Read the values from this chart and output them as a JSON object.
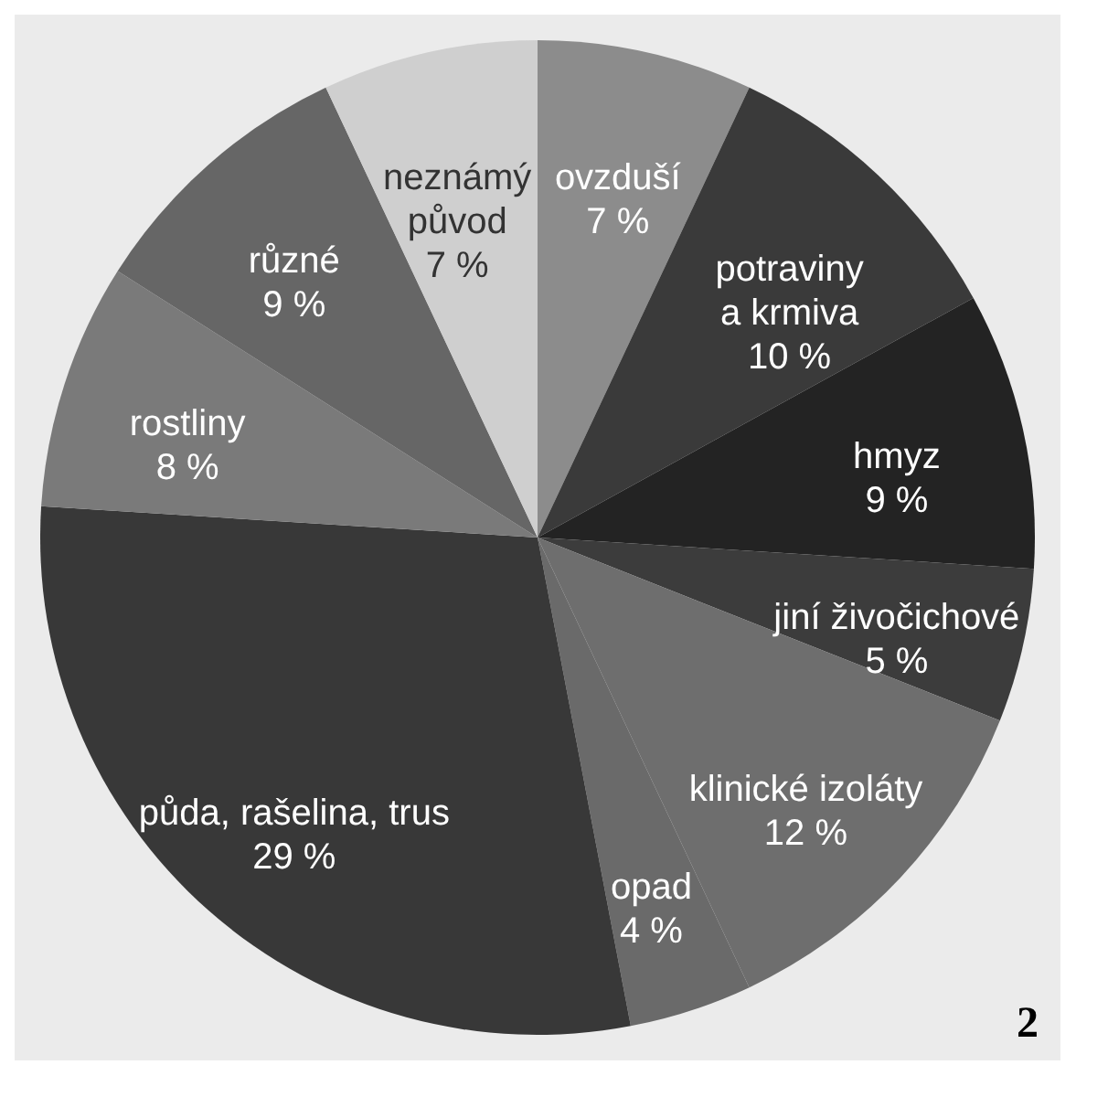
{
  "chart_data": {
    "type": "pie",
    "categories": [
      "ovzduší",
      "potraviny\na krmiva",
      "hmyz",
      "jiní živočichové",
      "klinické izoláty",
      "opad",
      "půda, rašelina, trus",
      "rostliny",
      "různé",
      "neznámý\npůvod"
    ],
    "values": [
      7,
      10,
      9,
      5,
      12,
      4,
      29,
      8,
      9,
      7
    ],
    "value_labels": [
      "7 %",
      "10 %",
      "9 %",
      "5 %",
      "12 %",
      "4 %",
      "29 %",
      "8 %",
      "9 %",
      "7 %"
    ],
    "colors": [
      "#8c8c8c",
      "#3a3a3a",
      "#232323",
      "#3c3c3c",
      "#6e6e6e",
      "#6a6a6a",
      "#383838",
      "#7a7a7a",
      "#666666",
      "#cfcfcf"
    ],
    "annotations": [
      "2"
    ]
  }
}
